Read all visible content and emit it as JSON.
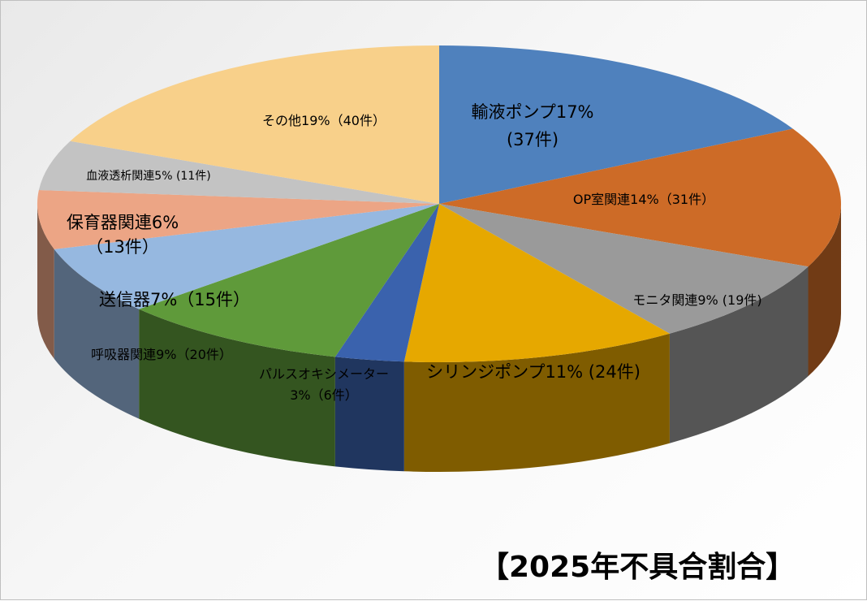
{
  "chart_data": {
    "type": "pie",
    "title": "【2025年不具合割合】",
    "slices": [
      {
        "name": "輸液ポンプ",
        "percent": 17,
        "count": 37,
        "label_lines": [
          "輸液ポンプ17%",
          "(37件)"
        ],
        "color": "#4f81bd"
      },
      {
        "name": "OP室関連",
        "percent": 14,
        "count": 31,
        "label_lines": [
          "OP室関連14%（31件）"
        ],
        "color": "#cd6b27"
      },
      {
        "name": "モニタ関連",
        "percent": 9,
        "count": 19,
        "label_lines": [
          "モニタ関連9% (19件)"
        ],
        "color": "#9a9a9a"
      },
      {
        "name": "シリンジポンプ",
        "percent": 11,
        "count": 24,
        "label_lines": [
          "シリンジポンプ11% (24件)"
        ],
        "color": "#e6a800"
      },
      {
        "name": "パルスオキシメーター",
        "percent": 3,
        "count": 6,
        "label_lines": [
          "パルスオキシメーター",
          "3%（6件）"
        ],
        "color": "#3a62ad"
      },
      {
        "name": "呼吸器関連",
        "percent": 9,
        "count": 20,
        "label_lines": [
          "呼吸器関連9%（20件）"
        ],
        "color": "#5f9a3a"
      },
      {
        "name": "送信器",
        "percent": 7,
        "count": 15,
        "label_lines": [
          "送信器7%（15件）"
        ],
        "color": "#96b8e0"
      },
      {
        "name": "保育器関連",
        "percent": 6,
        "count": 13,
        "label_lines": [
          "保育器関連6%",
          "（13件）"
        ],
        "color": "#eca585"
      },
      {
        "name": "血液透析関連",
        "percent": 5,
        "count": 11,
        "label_lines": [
          "血液透析関連5% (11件)"
        ],
        "color": "#c3c3c3"
      },
      {
        "name": "その他",
        "percent": 19,
        "count": 40,
        "label_lines": [
          "その他19%（40件）"
        ],
        "color": "#f8d08a"
      }
    ]
  }
}
